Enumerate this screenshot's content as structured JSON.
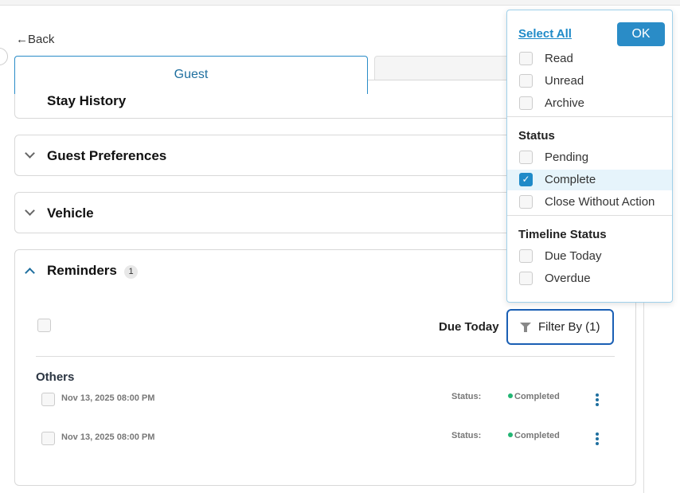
{
  "nav": {
    "back_label": "Back"
  },
  "tabs": [
    {
      "label": "Guest",
      "active": true
    },
    {
      "label": "",
      "active": false
    }
  ],
  "sections": [
    {
      "title": "Stay History",
      "expanded": false
    },
    {
      "title": "Guest Preferences",
      "expanded": false
    },
    {
      "title": "Vehicle",
      "expanded": false
    },
    {
      "title": "Reminders",
      "expanded": true,
      "count": "1"
    }
  ],
  "reminders": {
    "due_today_label": "Due Today",
    "filter_label": "Filter By (1)",
    "group_label": "Others",
    "rows": [
      {
        "date": "Nov 13, 2025 08:00 PM",
        "status_label": "Status:",
        "status": "Completed"
      },
      {
        "date": "Nov 13, 2025 08:00 PM",
        "status_label": "Status:",
        "status": "Completed"
      }
    ]
  },
  "filter_dropdown": {
    "select_all": "Select All",
    "ok": "OK",
    "read_items": [
      {
        "label": "Read",
        "checked": false
      },
      {
        "label": "Unread",
        "checked": false
      },
      {
        "label": "Archive",
        "checked": false
      }
    ],
    "status_heading": "Status",
    "status_items": [
      {
        "label": "Pending",
        "checked": false
      },
      {
        "label": "Complete",
        "checked": true
      },
      {
        "label": "Close Without Action",
        "checked": false
      }
    ],
    "timeline_heading": "Timeline Status",
    "timeline_items": [
      {
        "label": "Due Today",
        "checked": false
      },
      {
        "label": "Overdue",
        "checked": false
      }
    ]
  },
  "colors": {
    "accent": "#2a8cc7",
    "status_completed": "#22b573",
    "filter_border": "#1a5fb4"
  }
}
